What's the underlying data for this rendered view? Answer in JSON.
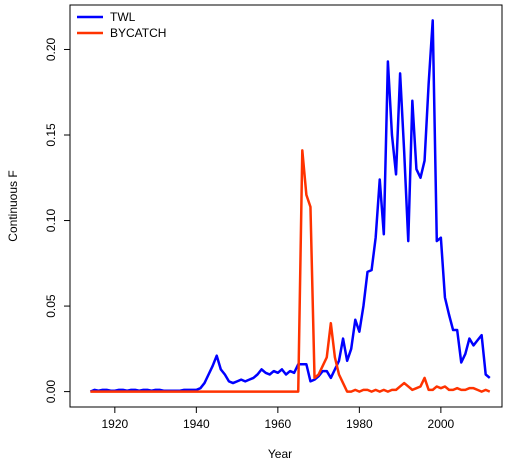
{
  "chart_data": {
    "type": "line",
    "xlabel": "Year",
    "ylabel": "Continuous F",
    "x": [
      1914,
      1915,
      1916,
      1917,
      1918,
      1919,
      1920,
      1921,
      1922,
      1923,
      1924,
      1925,
      1926,
      1927,
      1928,
      1929,
      1930,
      1931,
      1932,
      1933,
      1934,
      1935,
      1936,
      1937,
      1938,
      1939,
      1940,
      1941,
      1942,
      1943,
      1944,
      1945,
      1946,
      1947,
      1948,
      1949,
      1950,
      1951,
      1952,
      1953,
      1954,
      1955,
      1956,
      1957,
      1958,
      1959,
      1960,
      1961,
      1962,
      1963,
      1964,
      1965,
      1966,
      1967,
      1968,
      1969,
      1970,
      1971,
      1972,
      1973,
      1974,
      1975,
      1976,
      1977,
      1978,
      1979,
      1980,
      1981,
      1982,
      1983,
      1984,
      1985,
      1986,
      1987,
      1988,
      1989,
      1990,
      1991,
      1992,
      1993,
      1994,
      1995,
      1996,
      1997,
      1998,
      1999,
      2000,
      2001,
      2002,
      2003,
      2004,
      2005,
      2006,
      2007,
      2008,
      2009,
      2010,
      2011,
      2012
    ],
    "series": [
      {
        "name": "TWL",
        "color": "#0000ff",
        "values": [
          0,
          0.001,
          0.0005,
          0.001,
          0.001,
          0.0005,
          0.0005,
          0.001,
          0.001,
          0.0005,
          0.001,
          0.001,
          0.0005,
          0.001,
          0.001,
          0.0005,
          0.001,
          0.001,
          0.0005,
          0.0005,
          0.0005,
          0.0005,
          0.0005,
          0.001,
          0.001,
          0.001,
          0.001,
          0.002,
          0.005,
          0.01,
          0.015,
          0.021,
          0.013,
          0.01,
          0.006,
          0.005,
          0.006,
          0.007,
          0.006,
          0.007,
          0.008,
          0.01,
          0.013,
          0.011,
          0.01,
          0.012,
          0.011,
          0.013,
          0.01,
          0.012,
          0.011,
          0.016,
          0.016,
          0.016,
          0.006,
          0.007,
          0.009,
          0.012,
          0.012,
          0.008,
          0.013,
          0.018,
          0.031,
          0.018,
          0.025,
          0.042,
          0.035,
          0.05,
          0.07,
          0.071,
          0.09,
          0.124,
          0.092,
          0.193,
          0.15,
          0.127,
          0.186,
          0.14,
          0.088,
          0.17,
          0.13,
          0.125,
          0.135,
          0.18,
          0.217,
          0.088,
          0.09,
          0.055,
          0.045,
          0.036,
          0.036,
          0.017,
          0.022,
          0.031,
          0.027,
          0.03,
          0.033,
          0.01,
          0.008
        ]
      },
      {
        "name": "BYCATCH",
        "color": "#ff3300",
        "values": [
          0,
          0,
          0,
          0,
          0,
          0,
          0,
          0,
          0,
          0,
          0,
          0,
          0,
          0,
          0,
          0,
          0,
          0,
          0,
          0,
          0,
          0,
          0,
          0,
          0,
          0,
          0,
          0,
          0,
          0,
          0,
          0,
          0,
          0,
          0,
          0,
          0,
          0,
          0,
          0,
          0,
          0,
          0,
          0,
          0,
          0,
          0,
          0,
          0,
          0,
          0,
          0,
          0.141,
          0.115,
          0.108,
          0.008,
          0.01,
          0.015,
          0.02,
          0.04,
          0.02,
          0.01,
          0.005,
          0,
          0,
          0.001,
          0,
          0.001,
          0.001,
          0,
          0.001,
          0,
          0.001,
          0,
          0.001,
          0.001,
          0.003,
          0.005,
          0.003,
          0.001,
          0.002,
          0.003,
          0.008,
          0.001,
          0.001,
          0.003,
          0.002,
          0.003,
          0.001,
          0.001,
          0.002,
          0.001,
          0.001,
          0.002,
          0.002,
          0.001,
          0,
          0.001,
          0
        ]
      }
    ],
    "xlim": [
      1909,
      2015
    ],
    "ylim": [
      -0.009,
      0.226
    ],
    "xticks": [
      1920,
      1940,
      1960,
      1980,
      2000
    ],
    "yticks": [
      {
        "value": 0,
        "label": "0.00"
      },
      {
        "value": 0.05,
        "label": "0.05"
      },
      {
        "value": 0.1,
        "label": "0.10"
      },
      {
        "value": 0.15,
        "label": "0.15"
      },
      {
        "value": 0.2,
        "label": "0.20"
      }
    ],
    "legend": "top-left",
    "grid": false
  }
}
